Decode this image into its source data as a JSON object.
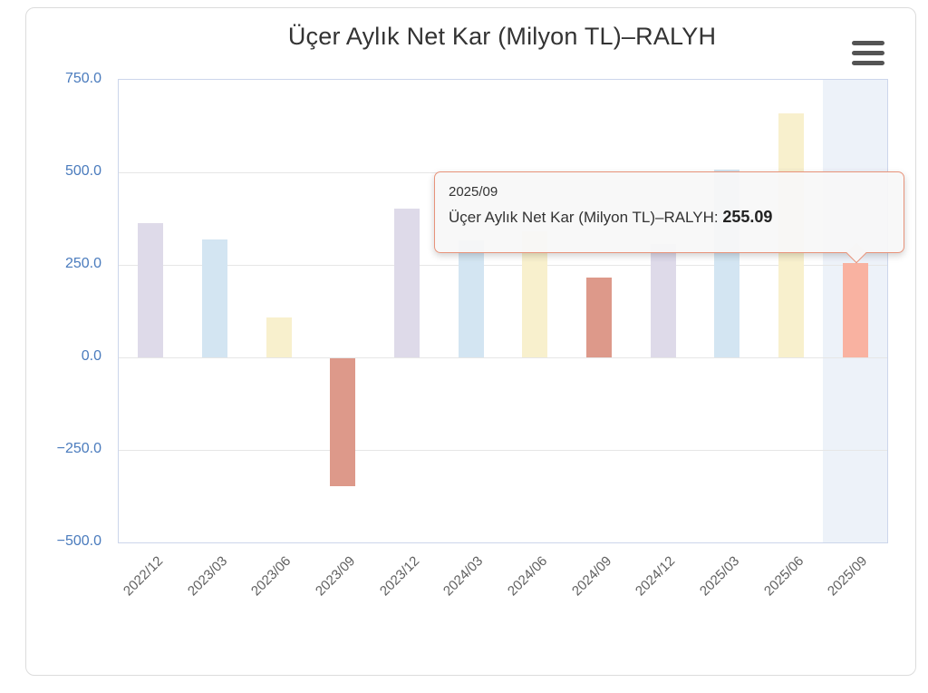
{
  "chart_data": {
    "type": "bar",
    "title": "Üçer Aylık Net Kar (Milyon TL)–RALYH",
    "categories": [
      "2022/12",
      "2023/03",
      "2023/06",
      "2023/09",
      "2023/12",
      "2024/03",
      "2024/06",
      "2024/09",
      "2024/12",
      "2025/03",
      "2025/06",
      "2025/09"
    ],
    "values": [
      363,
      319,
      108,
      -345,
      402,
      316,
      341,
      216,
      306,
      507,
      659,
      255.09
    ],
    "bar_colors": [
      "#dedae9",
      "#d3e5f2",
      "#f8f0cd",
      "#dd998a",
      "#dedae9",
      "#d3e5f2",
      "#f8f0cd",
      "#dd998a",
      "#dedae9",
      "#d3e5f2",
      "#f8f0cd",
      "#f9b2a1"
    ],
    "xlabel": "",
    "ylabel": "",
    "ylim": [
      -500,
      750
    ],
    "yticks": [
      750,
      500,
      250,
      0,
      -250,
      -500
    ],
    "ytick_labels": [
      "750.0",
      "500.0",
      "250.0",
      "0.0",
      "−250.0",
      "−500.0"
    ],
    "grid": true,
    "legend": "none",
    "highlighted_category": "2025/09"
  },
  "tooltip": {
    "header": "2025/09",
    "label": "Üçer Aylık Net Kar (Milyon TL)–RALYH: ",
    "value": "255.09"
  },
  "export_menu": {
    "icon": "hamburger-icon"
  },
  "colors": {
    "axis_line": "#ccd6eb",
    "gridline": "#e6e6e6",
    "ytick_text": "#4a7bbd",
    "xtick_text": "#606060",
    "title_text": "#333333",
    "tooltip_border": "#e8937a",
    "highlight_band": "#edf2f9",
    "menu_icon": "#545454"
  }
}
